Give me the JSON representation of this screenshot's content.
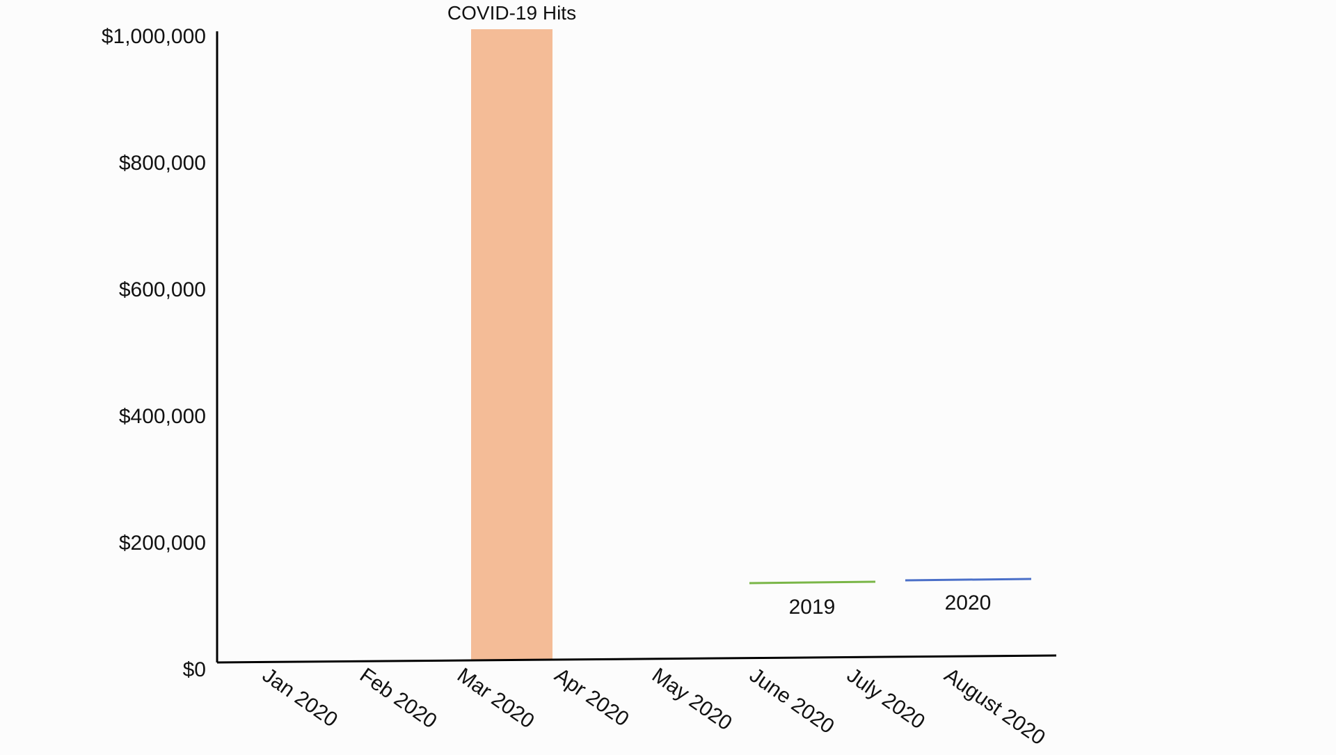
{
  "chart_data": {
    "type": "bar",
    "title": "",
    "xlabel": "",
    "ylabel": "",
    "categories": [
      "Jan 2020",
      "Feb 2020",
      "Mar 2020",
      "Apr 2020",
      "May 2020",
      "June 2020",
      "July 2020",
      "August 2020"
    ],
    "ylim": [
      0,
      1000000
    ],
    "y_ticks": [
      {
        "value": 0,
        "label": "$0"
      },
      {
        "value": 200000,
        "label": "$200,000"
      },
      {
        "value": 400000,
        "label": "$400,000"
      },
      {
        "value": 600000,
        "label": "$600,000"
      },
      {
        "value": 800000,
        "label": "$800,000"
      },
      {
        "value": 1000000,
        "label": "$1,000,000"
      }
    ],
    "highlight": {
      "label": "COVID-19 Hits",
      "from_category": "Feb 2020",
      "to_category": "Mar 2020",
      "value": 1000000,
      "color": "#f4bc97"
    },
    "legend": [
      {
        "name": "2019",
        "color": "#7ab648"
      },
      {
        "name": "2020",
        "color": "#4a6fc8"
      }
    ],
    "grid": false,
    "legend_position": "bottom-right",
    "axis_color": "#000000"
  }
}
